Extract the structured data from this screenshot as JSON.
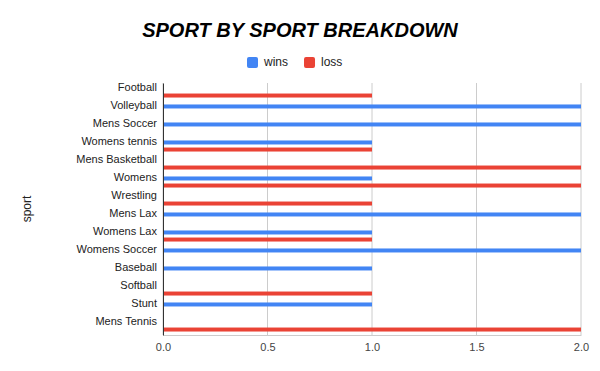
{
  "chart_data": {
    "type": "bar",
    "orientation": "horizontal",
    "title": "SPORT BY SPORT BREAKDOWN",
    "y_label": "sport",
    "categories": [
      "Football",
      "Volleyball",
      "Mens Soccer",
      "Womens tennis",
      "Mens Basketball",
      "Womens",
      "Wrestling",
      "Mens Lax",
      "Womens Lax",
      "Womens Soccer",
      "Baseball",
      "Softball",
      "Stunt",
      "Mens Tennis"
    ],
    "series": [
      {
        "name": "wins",
        "color": "#4285f4",
        "values": [
          0,
          2,
          2,
          1,
          0,
          1,
          0,
          2,
          1,
          2,
          1,
          0,
          1,
          0
        ]
      },
      {
        "name": "loss",
        "color": "#ea4335",
        "values": [
          1,
          0,
          0,
          1,
          2,
          2,
          1,
          0,
          1,
          0,
          0,
          1,
          0,
          2
        ]
      }
    ],
    "xlim": [
      0,
      2
    ],
    "xticks": [
      {
        "value": 0,
        "label": "0.0"
      },
      0.5,
      {
        "value": 1,
        "label": "1.0"
      },
      1.5,
      {
        "value": 2,
        "label": "2.0"
      }
    ],
    "grid": true,
    "legend": "top"
  }
}
